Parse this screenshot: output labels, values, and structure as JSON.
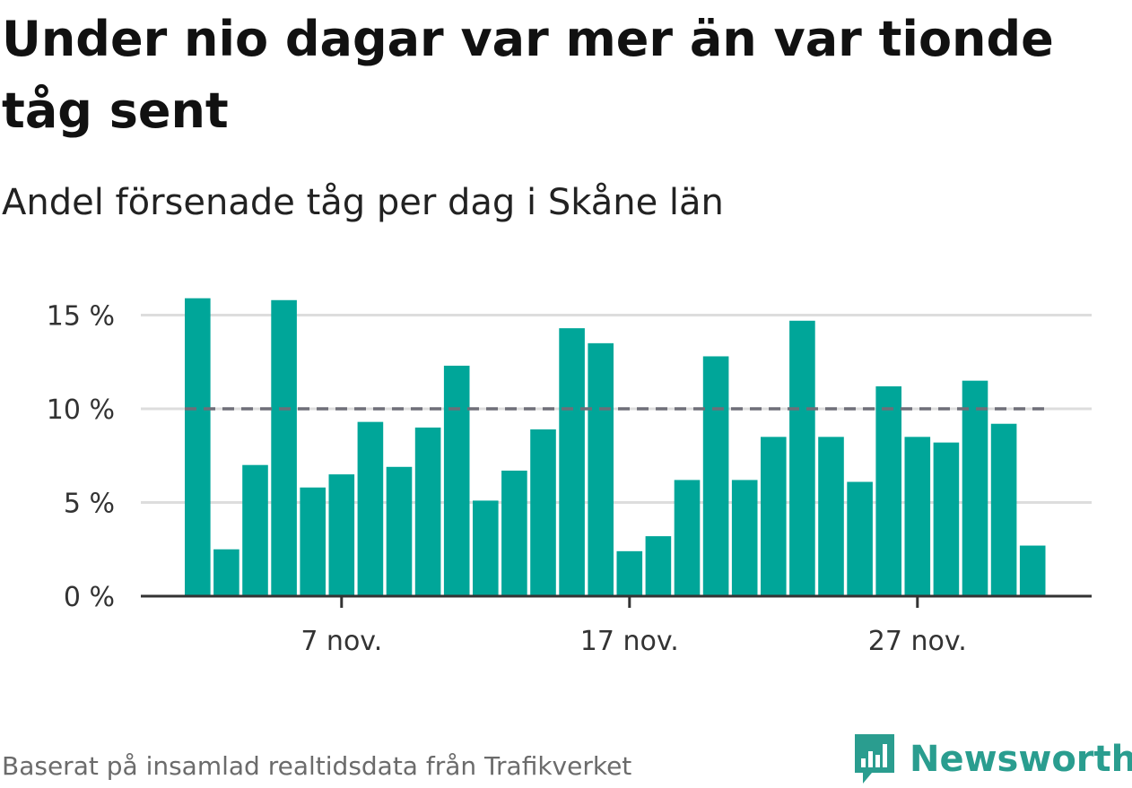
{
  "header": {
    "title": "Under nio dagar var mer än var tionde tåg sent",
    "subtitle": "Andel försenade tåg per dag i Skåne län"
  },
  "footer": {
    "source": "Baserat på insamlad realtidsdata från Trafikverket",
    "brand": "Newsworthy",
    "brand_icon": "newsworthy-logo-icon"
  },
  "colors": {
    "bar": "#00a699",
    "reference_line": "#6e6e78",
    "grid": "#dddddd",
    "axis": "#333333",
    "brand": "#2a9d8f"
  },
  "chart_data": {
    "type": "bar",
    "x": [
      "2 nov.",
      "3 nov.",
      "4 nov.",
      "5 nov.",
      "6 nov.",
      "7 nov.",
      "8 nov.",
      "9 nov.",
      "10 nov.",
      "11 nov.",
      "12 nov.",
      "13 nov.",
      "14 nov.",
      "15 nov.",
      "16 nov.",
      "17 nov.",
      "18 nov.",
      "19 nov.",
      "20 nov.",
      "21 nov.",
      "22 nov.",
      "23 nov.",
      "24 nov.",
      "25 nov.",
      "26 nov.",
      "27 nov.",
      "28 nov.",
      "29 nov.",
      "30 nov.",
      "1 dec."
    ],
    "values": [
      15.9,
      2.5,
      7.0,
      15.8,
      5.8,
      6.5,
      9.3,
      6.9,
      9.0,
      12.3,
      5.1,
      6.7,
      8.9,
      14.3,
      13.5,
      2.4,
      3.2,
      6.2,
      12.8,
      6.2,
      8.5,
      14.7,
      8.5,
      6.1,
      11.2,
      8.5,
      8.2,
      11.5,
      9.2,
      2.7
    ],
    "xticks": [
      {
        "value": "7 nov.",
        "label": "7 nov."
      },
      {
        "value": "17 nov.",
        "label": "17 nov."
      },
      {
        "value": "27 nov.",
        "label": "27 nov."
      }
    ],
    "yticks": [
      {
        "value": 0,
        "label": "0 %"
      },
      {
        "value": 5,
        "label": "5 %"
      },
      {
        "value": 10,
        "label": "10 %"
      },
      {
        "value": 15,
        "label": "15 %"
      }
    ],
    "ylim": [
      0,
      15.9
    ],
    "reference_line": {
      "value": 10,
      "style": "dashed"
    },
    "grid": true
  }
}
